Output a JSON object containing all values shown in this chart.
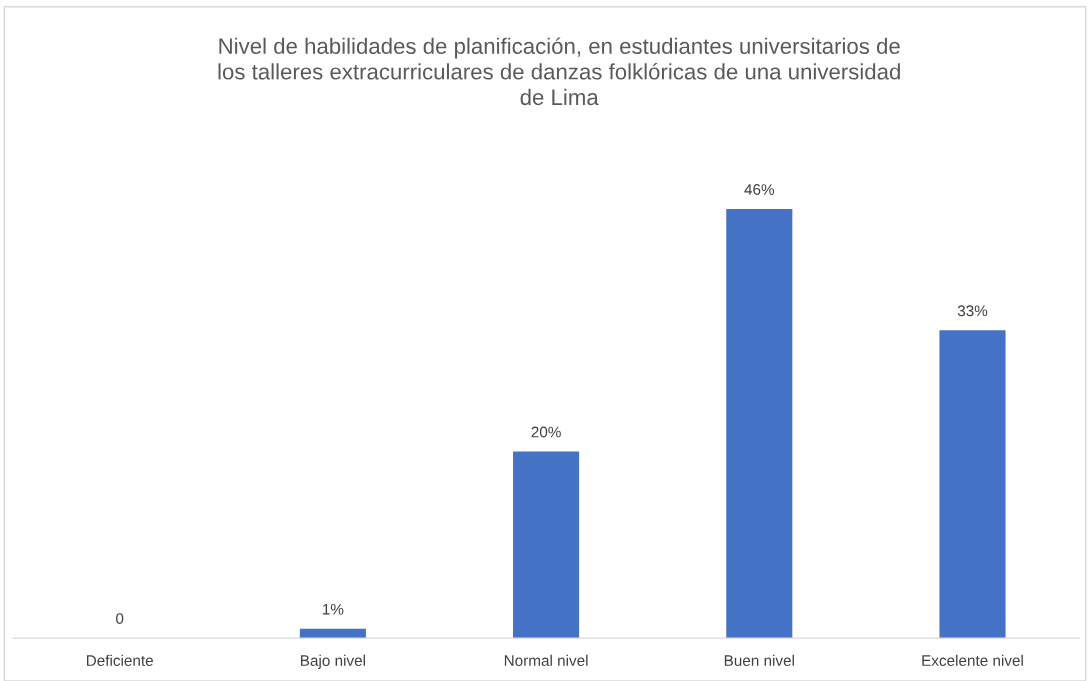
{
  "chart_data": {
    "type": "bar",
    "title": "Nivel de habilidades de planificación, en estudiantes universitarios de\nlos talleres extracurriculares de danzas folklóricas de una universidad\nde Lima",
    "categories": [
      "Deficiente",
      "Bajo nivel",
      "Normal nivel",
      "Buen nivel",
      "Excelente nivel"
    ],
    "values": [
      0,
      1,
      20,
      46,
      33
    ],
    "value_labels": [
      "0",
      "1%",
      "20%",
      "46%",
      "33%"
    ],
    "color": "#4472c4"
  }
}
